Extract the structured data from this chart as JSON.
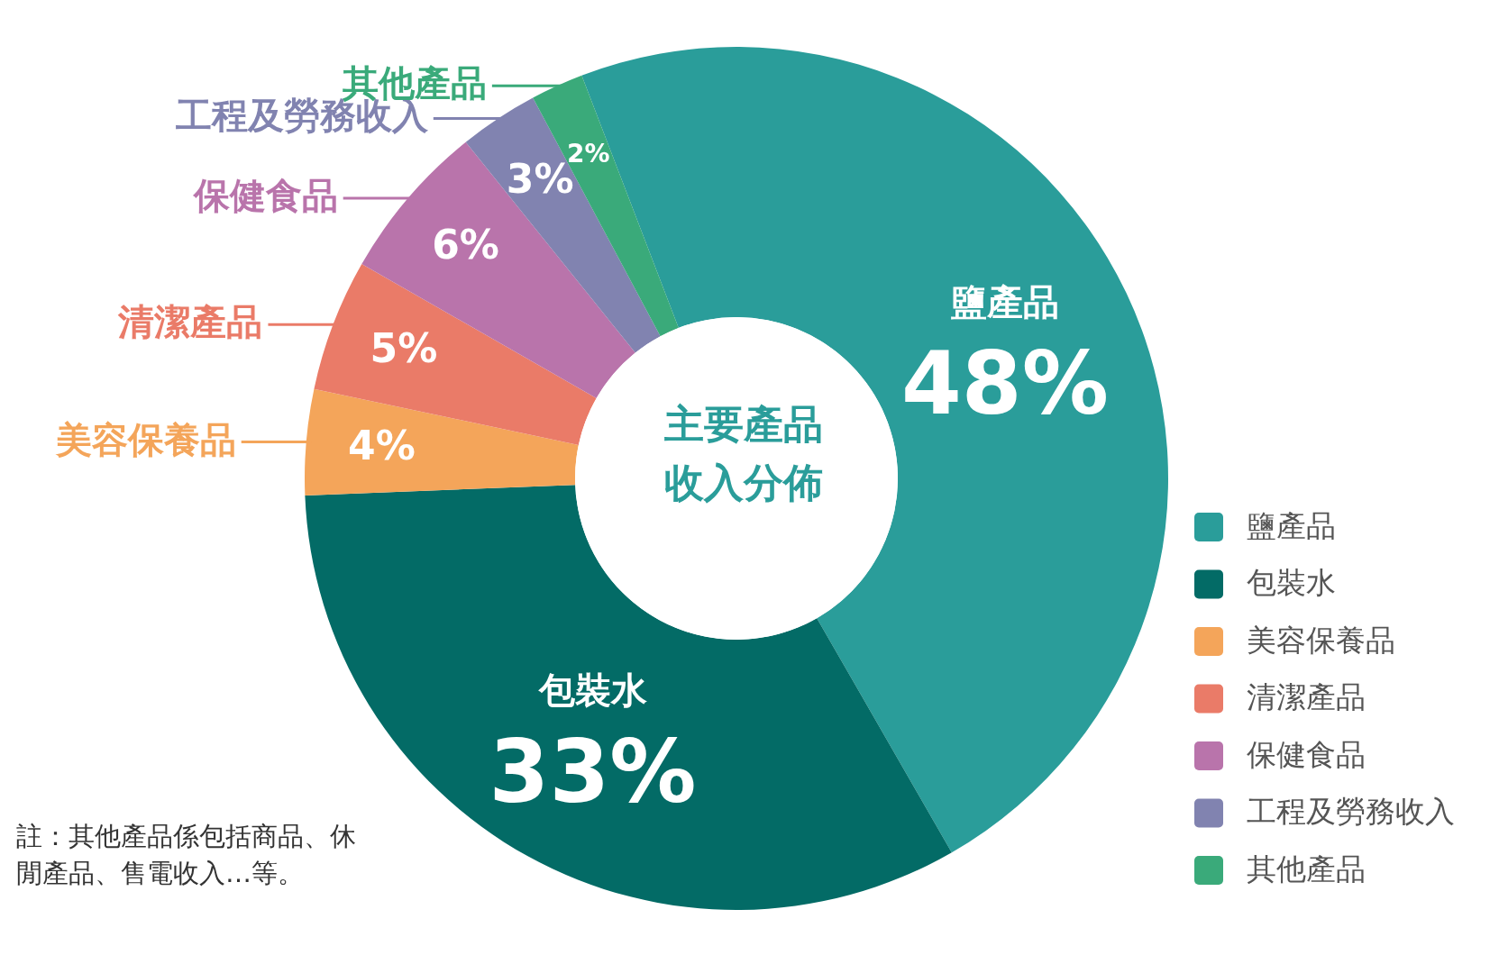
{
  "chart_data": {
    "type": "donut",
    "title": "主要產品收入分佈",
    "categories": [
      "鹽產品",
      "包裝水",
      "美容保養品",
      "清潔產品",
      "保健食品",
      "工程及勞務收入",
      "其他產品"
    ],
    "values": [
      48,
      33,
      4,
      5,
      6,
      3,
      2
    ],
    "value_labels": [
      "48%",
      "33%",
      "4%",
      "5%",
      "6%",
      "3%",
      "2%"
    ],
    "colors": [
      "#2a9d9a",
      "#036b66",
      "#f4a55a",
      "#ea7b68",
      "#b974ab",
      "#8183b0",
      "#3aaa7a"
    ],
    "legend": "bottom right",
    "annotations": [
      "註：其他產品係包括商品、休閒產品、售電收入…等。"
    ]
  }
}
